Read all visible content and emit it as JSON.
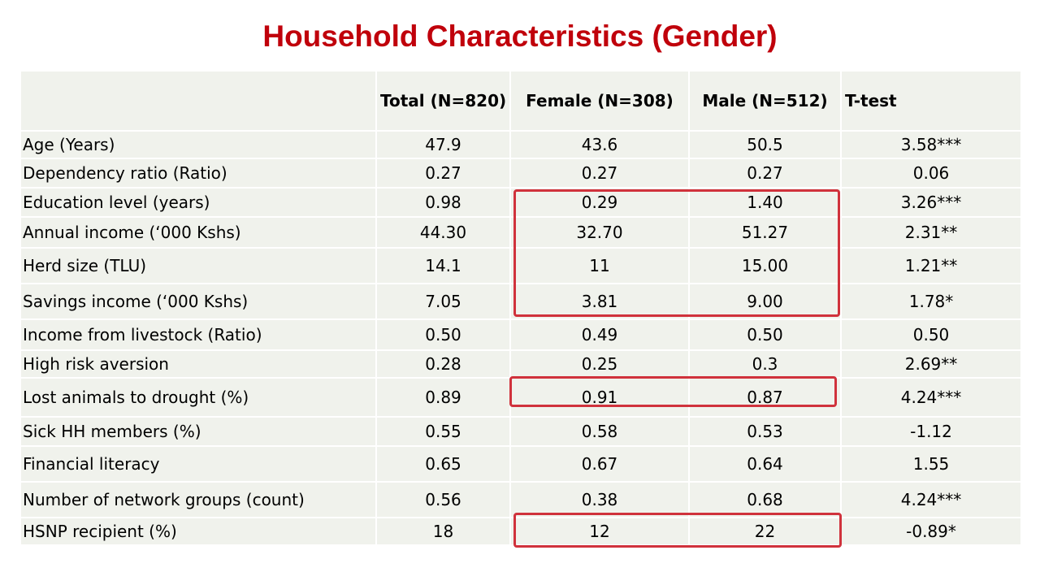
{
  "title": "Household Characteristics (Gender)",
  "table": {
    "headers": [
      "",
      "Total (N=820)",
      "Female (N=308)",
      "Male (N=512)",
      "T-test"
    ],
    "rows": [
      [
        "Age (Years)",
        "47.9",
        "43.6",
        "50.5",
        "3.58***"
      ],
      [
        "Dependency ratio (Ratio)",
        "0.27",
        "0.27",
        "0.27",
        "0.06"
      ],
      [
        "Education level (years)",
        "0.98",
        "0.29",
        "1.40",
        "3.26***"
      ],
      [
        "Annual income (‘000 Kshs)",
        "44.30",
        "32.70",
        "51.27",
        "2.31**"
      ],
      [
        "Herd size (TLU)",
        "14.1",
        "11",
        "15.00",
        "1.21**"
      ],
      [
        "Savings income (‘000 Kshs)",
        "7.05",
        "3.81",
        "9.00",
        "1.78*"
      ],
      [
        "Income from livestock  (Ratio)",
        "0.50",
        "0.49",
        "0.50",
        "0.50"
      ],
      [
        "High risk aversion",
        "0.28",
        "0.25",
        "0.3",
        "2.69**"
      ],
      [
        "Lost animals to drought (%)",
        "0.89",
        "0.91",
        "0.87",
        "4.24***"
      ],
      [
        "Sick HH members (%)",
        "0.55",
        "0.58",
        "0.53",
        "-1.12"
      ],
      [
        "Financial literacy",
        "0.65",
        "0.67",
        "0.64",
        "1.55"
      ],
      [
        "Number of network groups (count)",
        "0.56",
        "0.38",
        "0.68",
        "4.24***"
      ],
      [
        "HSNP recipient (%)",
        "18",
        "12",
        "22",
        "-0.89*"
      ]
    ]
  },
  "highlight_color": "#d0323c",
  "title_color": "#c0000b",
  "cell_background": "#f0f2ec"
}
